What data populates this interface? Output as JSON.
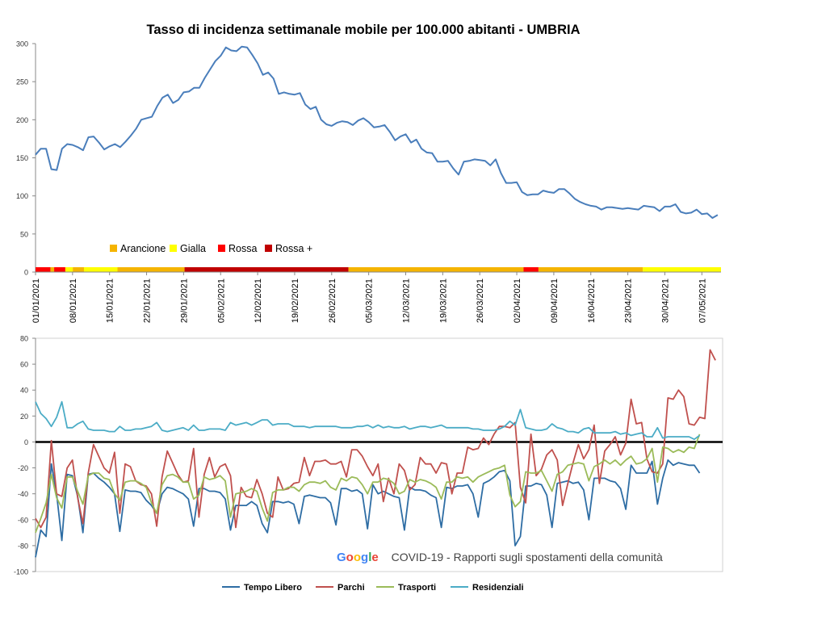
{
  "chart_data": [
    {
      "type": "line",
      "title": "Tasso di incidenza settimanale mobile per 100.000 abitanti - UMBRIA",
      "ylim": [
        0,
        300
      ],
      "yticks": [
        "0",
        "50",
        "100",
        "150",
        "200",
        "250",
        "300"
      ],
      "x_start": "2021-01-01",
      "x_end": "2021-05-12",
      "xtick_labels": [
        "01/01/2021",
        "08/01/2021",
        "15/01/2021",
        "22/01/2021",
        "29/01/2021",
        "05/02/2021",
        "12/02/2021",
        "19/02/2021",
        "26/02/2021",
        "05/03/2021",
        "12/03/2021",
        "19/03/2021",
        "26/03/2021",
        "02/04/2021",
        "09/04/2021",
        "16/04/2021",
        "23/04/2021",
        "30/04/2021",
        "07/05/2021"
      ],
      "series": [
        {
          "color": "#4A7EBB",
          "values": [
            154,
            162,
            162,
            135,
            134,
            162,
            168,
            167,
            164,
            160,
            177,
            178,
            170,
            161,
            165,
            168,
            164,
            171,
            179,
            188,
            200,
            202,
            204,
            218,
            229,
            233,
            222,
            226,
            236,
            237,
            242,
            242,
            255,
            266,
            277,
            284,
            295,
            291,
            290,
            296,
            295,
            285,
            274,
            259,
            262,
            254,
            234,
            236,
            234,
            233,
            235,
            220,
            214,
            217,
            200,
            194,
            192,
            196,
            198,
            197,
            193,
            199,
            202,
            197,
            190,
            191,
            193,
            184,
            173,
            178,
            181,
            170,
            174,
            162,
            157,
            156,
            145,
            145,
            146,
            136,
            128,
            145,
            146,
            148,
            147,
            146,
            140,
            148,
            130,
            117,
            117,
            118,
            105,
            101,
            102,
            102,
            107,
            105,
            104,
            109,
            109,
            103,
            96,
            92,
            89,
            87,
            86,
            82,
            85,
            85,
            84,
            83,
            84,
            83,
            82,
            87,
            86,
            85,
            80,
            86,
            86,
            89,
            79,
            77,
            78,
            82,
            76,
            77,
            71,
            75
          ]
        }
      ],
      "zone_legend": [
        {
          "label": "Arancione",
          "color": "#F5B400"
        },
        {
          "label": "Gialla",
          "color": "#FFFF00"
        },
        {
          "label": "Rossa",
          "color": "#FF0000"
        },
        {
          "label": "Rossa +",
          "color": "#C00000"
        }
      ],
      "zone_band": [
        {
          "from": 0,
          "to": 4,
          "zone": "Rossa"
        },
        {
          "from": 4,
          "to": 5,
          "zone": "Arancione"
        },
        {
          "from": 5,
          "to": 8,
          "zone": "Rossa"
        },
        {
          "from": 8,
          "to": 10,
          "zone": "Gialla"
        },
        {
          "from": 10,
          "to": 13,
          "zone": "Arancione"
        },
        {
          "from": 13,
          "to": 22,
          "zone": "Gialla"
        },
        {
          "from": 22,
          "to": 40,
          "zone": "Arancione"
        },
        {
          "from": 40,
          "to": 84,
          "zone": "Rossa +"
        },
        {
          "from": 84,
          "to": 131,
          "zone": "Arancione"
        },
        {
          "from": 131,
          "to": 135,
          "zone": "Rossa"
        },
        {
          "from": 135,
          "to": 163,
          "zone": "Arancione"
        },
        {
          "from": 163,
          "to": 184,
          "zone": "Gialla"
        }
      ]
    },
    {
      "type": "line",
      "ylim": [
        -100,
        80
      ],
      "yticks": [
        "-100",
        "-80",
        "-60",
        "-40",
        "-20",
        "0",
        "20",
        "40",
        "60",
        "80"
      ],
      "source_note": "COVID-19 - Rapporti sugli spostamenti della comunità",
      "series": [
        {
          "name": "Tempo Libero",
          "color": "#2E6DA4",
          "values": [
            -89,
            -68,
            -73,
            -17,
            -40,
            -76,
            -25,
            -26,
            -42,
            -70,
            -25,
            -24,
            -28,
            -31,
            -35,
            -40,
            -69,
            -37,
            -38,
            -38,
            -39,
            -45,
            -49,
            -55,
            -40,
            -35,
            -36,
            -38,
            -40,
            -44,
            -65,
            -36,
            -36,
            -38,
            -38,
            -39,
            -44,
            -68,
            -49,
            -49,
            -49,
            -46,
            -49,
            -63,
            -70,
            -46,
            -46,
            -47,
            -46,
            -48,
            -63,
            -42,
            -41,
            -42,
            -43,
            -43,
            -47,
            -64,
            -36,
            -36,
            -38,
            -37,
            -40,
            -67,
            -33,
            -40,
            -38,
            -40,
            -42,
            -43,
            -68,
            -35,
            -37,
            -37,
            -38,
            -41,
            -43,
            -66,
            -35,
            -36,
            -34,
            -34,
            -33,
            -40,
            -58,
            -32,
            -30,
            -27,
            -23,
            -22,
            -30,
            -80,
            -73,
            -34,
            -34,
            -32,
            -33,
            -41,
            -66,
            -32,
            -31,
            -30,
            -32,
            -31,
            -37,
            -60,
            -28,
            -28,
            -28,
            -30,
            -31,
            -36,
            -52,
            -18,
            -24,
            -24,
            -24,
            -15,
            -48,
            -28,
            -14,
            -18,
            -16,
            -17,
            -18,
            -18,
            -24
          ]
        },
        {
          "name": "Parchi",
          "color": "#C0504D",
          "values": [
            -59,
            -66,
            -58,
            1,
            -40,
            -42,
            -20,
            -14,
            -43,
            -63,
            -24,
            -2,
            -11,
            -20,
            -24,
            -8,
            -55,
            -17,
            -19,
            -30,
            -33,
            -34,
            -40,
            -65,
            -27,
            -7,
            -16,
            -25,
            -31,
            -30,
            -5,
            -58,
            -25,
            -12,
            -27,
            -19,
            -17,
            -26,
            -66,
            -35,
            -42,
            -43,
            -29,
            -40,
            -55,
            -58,
            -27,
            -37,
            -36,
            -32,
            -31,
            -12,
            -26,
            -15,
            -15,
            -14,
            -17,
            -17,
            -15,
            -27,
            -6,
            -6,
            -11,
            -19,
            -26,
            -17,
            -46,
            -28,
            -40,
            -17,
            -22,
            -37,
            -33,
            -12,
            -17,
            -17,
            -24,
            -16,
            -17,
            -40,
            -24,
            -24,
            -4,
            -6,
            -5,
            3,
            -2,
            6,
            12,
            12,
            11,
            15,
            -35,
            -47,
            6,
            -26,
            -21,
            -10,
            -6,
            -14,
            -49,
            -32,
            -16,
            -2,
            -13,
            -6,
            13,
            -32,
            -7,
            -2,
            4,
            -10,
            -1,
            33,
            14,
            15,
            -13,
            -23,
            -24,
            -17,
            34,
            33,
            40,
            35,
            14,
            13,
            19,
            18,
            71,
            63
          ]
        },
        {
          "name": "Trasporti",
          "color": "#9BBB59",
          "values": [
            -70,
            -59,
            -47,
            -25,
            -43,
            -51,
            -27,
            -27,
            -38,
            -48,
            -26,
            -24,
            -24,
            -28,
            -29,
            -40,
            -45,
            -31,
            -30,
            -30,
            -32,
            -35,
            -47,
            -55,
            -33,
            -26,
            -25,
            -27,
            -31,
            -31,
            -44,
            -41,
            -27,
            -29,
            -28,
            -26,
            -30,
            -58,
            -40,
            -39,
            -38,
            -36,
            -38,
            -51,
            -61,
            -39,
            -37,
            -37,
            -35,
            -35,
            -38,
            -33,
            -31,
            -31,
            -32,
            -30,
            -35,
            -37,
            -28,
            -30,
            -27,
            -28,
            -33,
            -40,
            -31,
            -31,
            -28,
            -29,
            -32,
            -40,
            -38,
            -29,
            -31,
            -29,
            -30,
            -32,
            -35,
            -44,
            -31,
            -31,
            -27,
            -28,
            -27,
            -31,
            -27,
            -25,
            -23,
            -21,
            -20,
            -18,
            -41,
            -50,
            -46,
            -23,
            -24,
            -24,
            -22,
            -30,
            -38,
            -25,
            -23,
            -18,
            -17,
            -16,
            -17,
            -30,
            -19,
            -17,
            -14,
            -17,
            -14,
            -18,
            -14,
            -11,
            -17,
            -16,
            -13,
            -5,
            -31,
            -4,
            -5,
            -8,
            -6,
            -8,
            -4,
            -5,
            6
          ]
        },
        {
          "name": "Residenziali",
          "color": "#4BACC6",
          "values": [
            31,
            22,
            18,
            12,
            19,
            31,
            11,
            11,
            14,
            16,
            10,
            9,
            9,
            9,
            8,
            8,
            12,
            9,
            9,
            10,
            10,
            11,
            12,
            15,
            9,
            8,
            9,
            10,
            11,
            9,
            13,
            9,
            9,
            10,
            10,
            10,
            9,
            15,
            13,
            14,
            15,
            13,
            15,
            17,
            17,
            13,
            14,
            14,
            14,
            12,
            12,
            12,
            11,
            12,
            12,
            12,
            12,
            12,
            11,
            11,
            11,
            12,
            12,
            13,
            11,
            13,
            11,
            12,
            11,
            11,
            12,
            10,
            11,
            12,
            12,
            11,
            12,
            13,
            11,
            11,
            11,
            11,
            11,
            10,
            10,
            9,
            9,
            9,
            10,
            12,
            16,
            13,
            25,
            11,
            10,
            9,
            9,
            10,
            14,
            11,
            10,
            8,
            8,
            7,
            10,
            11,
            7,
            7,
            7,
            7,
            8,
            6,
            7,
            5,
            6,
            7,
            4,
            4,
            11,
            3,
            4,
            4,
            4,
            4,
            4,
            2,
            5
          ]
        }
      ]
    }
  ]
}
